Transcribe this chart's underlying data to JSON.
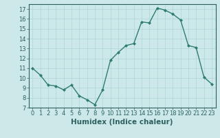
{
  "x": [
    0,
    1,
    2,
    3,
    4,
    5,
    6,
    7,
    8,
    9,
    10,
    11,
    12,
    13,
    14,
    15,
    16,
    17,
    18,
    19,
    20,
    21,
    22,
    23
  ],
  "y": [
    11.0,
    10.3,
    9.3,
    9.2,
    8.8,
    9.3,
    8.2,
    7.8,
    7.3,
    8.8,
    11.8,
    12.6,
    13.3,
    13.5,
    15.7,
    15.6,
    17.1,
    16.9,
    16.5,
    15.9,
    13.3,
    13.1,
    10.1,
    9.4
  ],
  "line_color": "#2e7d6e",
  "marker": "D",
  "marker_size": 2.0,
  "linewidth": 1.0,
  "xlabel": "Humidex (Indice chaleur)",
  "xlabel_fontsize": 7.5,
  "xlim": [
    -0.5,
    23.5
  ],
  "ylim": [
    7,
    17.5
  ],
  "yticks": [
    7,
    8,
    9,
    10,
    11,
    12,
    13,
    14,
    15,
    16,
    17
  ],
  "xticks": [
    0,
    1,
    2,
    3,
    4,
    5,
    6,
    7,
    8,
    9,
    10,
    11,
    12,
    13,
    14,
    15,
    16,
    17,
    18,
    19,
    20,
    21,
    22,
    23
  ],
  "bg_color": "#cce8e8",
  "grid_color": "#aed4d4",
  "tick_color": "#2e6060",
  "spine_color": "#2e6060",
  "tick_fontsize": 6.0,
  "bold_xlabel": true
}
